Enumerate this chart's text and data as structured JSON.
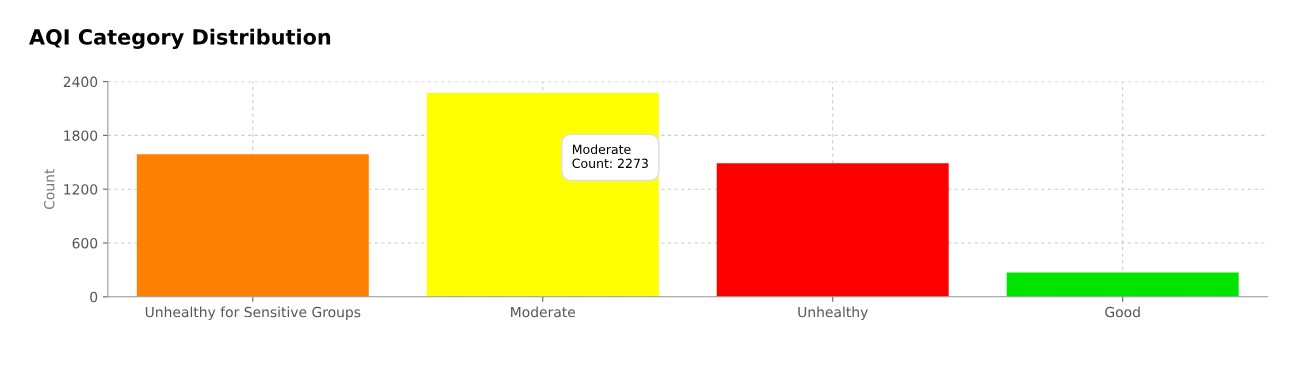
{
  "chart_data": {
    "type": "bar",
    "title": "AQI Category Distribution",
    "ylabel": "Count",
    "categories": [
      "Unhealthy for Sensitive Groups",
      "Moderate",
      "Unhealthy",
      "Good"
    ],
    "values": [
      1590,
      2273,
      1490,
      270
    ],
    "colors": [
      "#ff8000",
      "#ffff00",
      "#ff0000",
      "#00e400"
    ],
    "ylim": [
      0,
      2400
    ],
    "yticks": [
      0,
      600,
      1200,
      1800,
      2400
    ],
    "grid": true,
    "annotations": [
      "Moderate\nCount: 2273"
    ]
  }
}
